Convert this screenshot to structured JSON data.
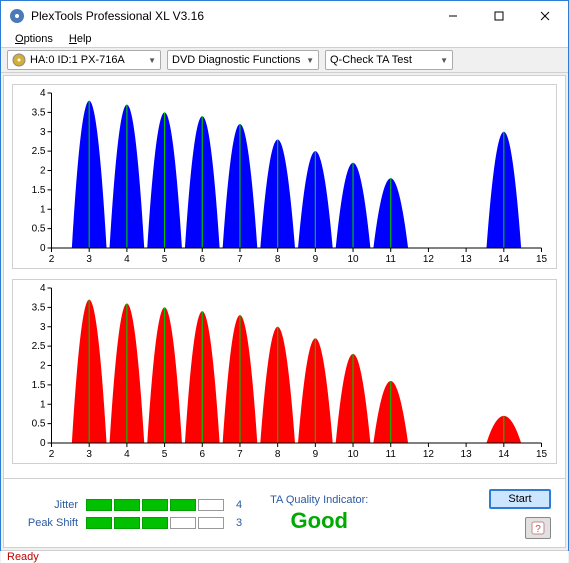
{
  "window": {
    "title": "PlexTools Professional XL V3.16",
    "icon_bg": "#4a7ab8"
  },
  "menu": {
    "options": "Options",
    "help": "Help"
  },
  "toolbar": {
    "drive": "HA:0 ID:1   PX-716A",
    "functions": "DVD Diagnostic Functions",
    "test": "Q-Check TA Test"
  },
  "chart": {
    "ylim": [
      0,
      4
    ],
    "yticks": [
      0,
      0.5,
      1,
      1.5,
      2,
      2.5,
      3,
      3.5,
      4
    ],
    "xlim": [
      2,
      15
    ],
    "xticks": [
      2,
      3,
      4,
      5,
      6,
      7,
      8,
      9,
      10,
      11,
      12,
      13,
      14,
      15
    ],
    "peak_line_color": "#00c000",
    "grid_color": "#e0e0e0",
    "axis_color": "#000000",
    "top": {
      "fill": "#0000ff",
      "peaks": [
        {
          "x": 3,
          "h": 3.8
        },
        {
          "x": 4,
          "h": 3.7
        },
        {
          "x": 5,
          "h": 3.5
        },
        {
          "x": 6,
          "h": 3.4
        },
        {
          "x": 7,
          "h": 3.2
        },
        {
          "x": 8,
          "h": 2.8
        },
        {
          "x": 9,
          "h": 2.5
        },
        {
          "x": 10,
          "h": 2.2
        },
        {
          "x": 11,
          "h": 1.8
        },
        {
          "x": 14,
          "h": 3.0
        }
      ]
    },
    "bottom": {
      "fill": "#ff0000",
      "peaks": [
        {
          "x": 3,
          "h": 3.7
        },
        {
          "x": 4,
          "h": 3.6
        },
        {
          "x": 5,
          "h": 3.5
        },
        {
          "x": 6,
          "h": 3.4
        },
        {
          "x": 7,
          "h": 3.3
        },
        {
          "x": 8,
          "h": 3.0
        },
        {
          "x": 9,
          "h": 2.7
        },
        {
          "x": 10,
          "h": 2.3
        },
        {
          "x": 11,
          "h": 1.6
        },
        {
          "x": 14,
          "h": 0.7
        }
      ]
    }
  },
  "indicators": {
    "jitter": {
      "label": "Jitter",
      "filled": 4,
      "total": 5,
      "count": "4"
    },
    "peakshift": {
      "label": "Peak Shift",
      "filled": 3,
      "total": 5,
      "count": "3"
    }
  },
  "quality": {
    "label": "TA Quality Indicator:",
    "value": "Good",
    "color": "#00aa00"
  },
  "buttons": {
    "start": "Start"
  },
  "status": {
    "text": "Ready",
    "color": "#c00000"
  }
}
